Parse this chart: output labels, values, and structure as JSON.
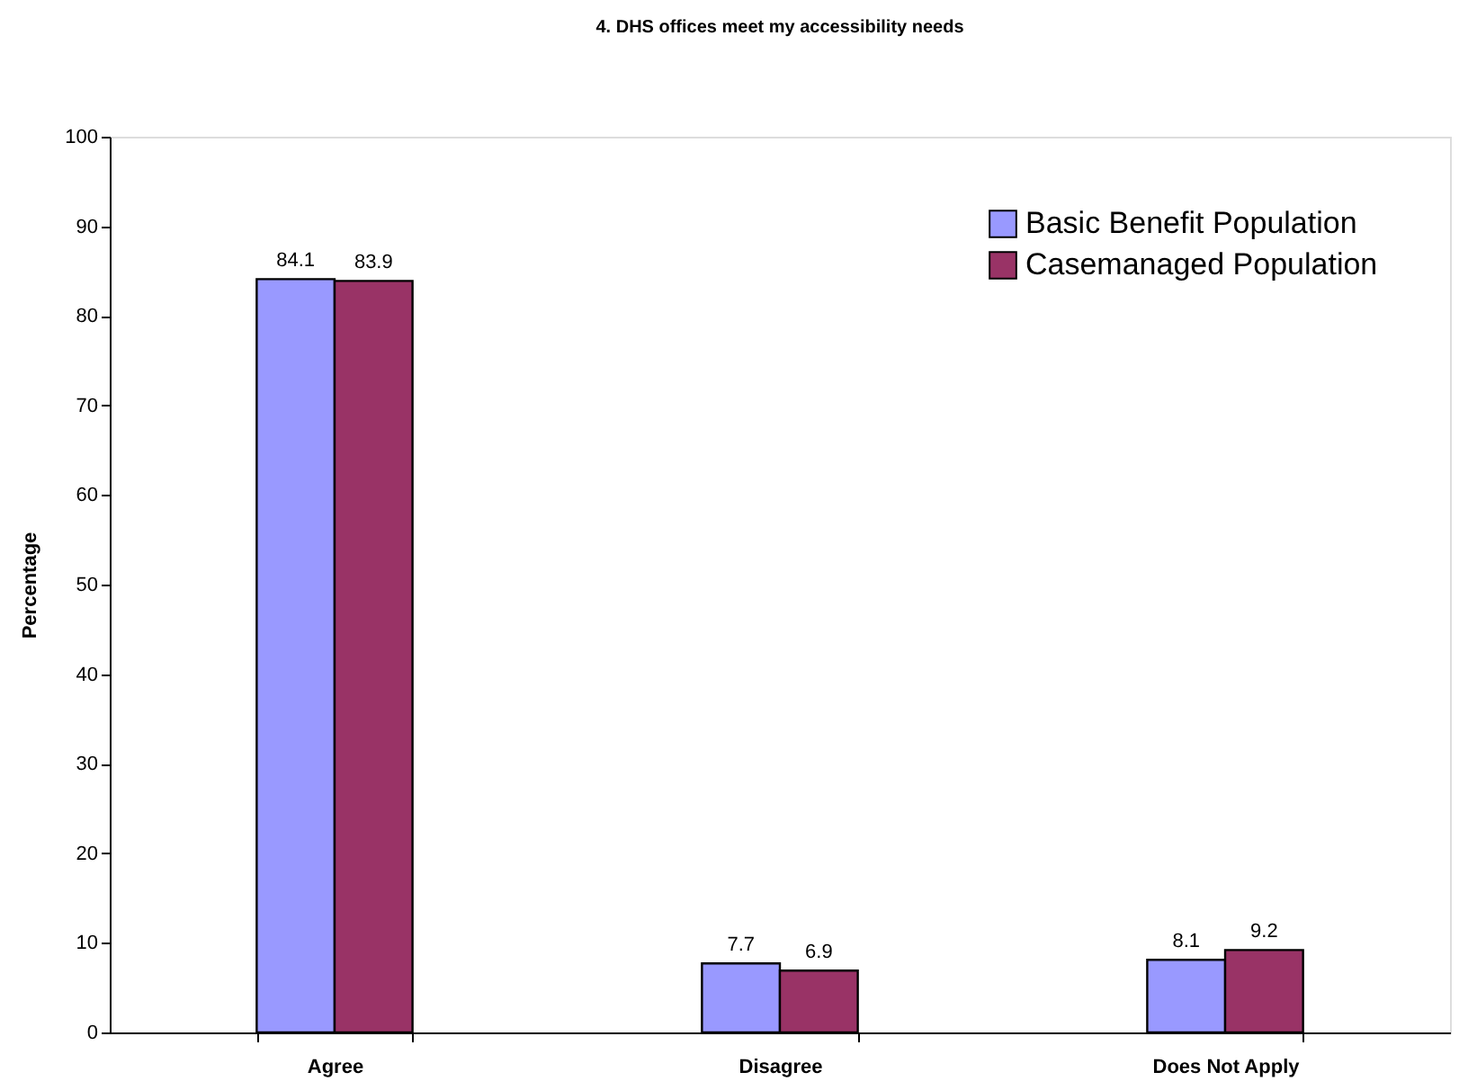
{
  "chart_data": {
    "type": "bar",
    "title": "4.  DHS offices meet my accessibility needs",
    "ylabel": "Percentage",
    "categories": [
      "Agree",
      "Disagree",
      "Does Not Apply"
    ],
    "series": [
      {
        "name": "Basic Benefit Population",
        "color": "#9999ff",
        "values": [
          84.1,
          7.7,
          8.1
        ]
      },
      {
        "name": "Casemanaged Population",
        "color": "#993366",
        "values": [
          83.9,
          6.9,
          9.2
        ]
      }
    ],
    "ylim": [
      0,
      100
    ],
    "yticks": [
      0,
      10,
      20,
      30,
      40,
      50,
      60,
      70,
      80,
      90,
      100
    ],
    "data_labels": true,
    "legend": "top right"
  }
}
